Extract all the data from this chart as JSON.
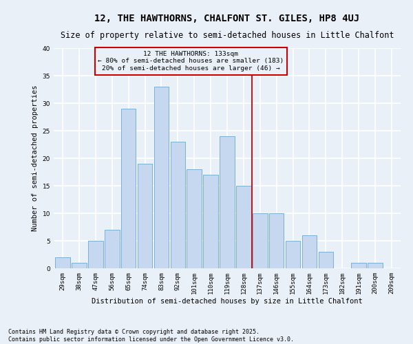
{
  "title1": "12, THE HAWTHORNS, CHALFONT ST. GILES, HP8 4UJ",
  "title2": "Size of property relative to semi-detached houses in Little Chalfont",
  "xlabel": "Distribution of semi-detached houses by size in Little Chalfont",
  "ylabel": "Number of semi-detached properties",
  "categories": [
    "29sqm",
    "38sqm",
    "47sqm",
    "56sqm",
    "65sqm",
    "74sqm",
    "83sqm",
    "92sqm",
    "101sqm",
    "110sqm",
    "119sqm",
    "128sqm",
    "137sqm",
    "146sqm",
    "155sqm",
    "164sqm",
    "173sqm",
    "182sqm",
    "191sqm",
    "200sqm",
    "209sqm"
  ],
  "values": [
    2,
    1,
    5,
    7,
    29,
    19,
    33,
    23,
    18,
    17,
    24,
    15,
    10,
    10,
    5,
    6,
    3,
    0,
    1,
    1,
    0
  ],
  "bar_color": "#c5d8f0",
  "bar_edge_color": "#7bafd4",
  "highlight_line_color": "#cc0000",
  "annotation_title": "12 THE HAWTHORNS: 133sqm",
  "annotation_line1": "← 80% of semi-detached houses are smaller (183)",
  "annotation_line2": "20% of semi-detached houses are larger (46) →",
  "annotation_box_color": "#cc0000",
  "ylim": [
    0,
    40
  ],
  "yticks": [
    0,
    5,
    10,
    15,
    20,
    25,
    30,
    35,
    40
  ],
  "footer1": "Contains HM Land Registry data © Crown copyright and database right 2025.",
  "footer2": "Contains public sector information licensed under the Open Government Licence v3.0.",
  "bg_color": "#eaf0f8",
  "grid_color": "#ffffff",
  "title1_fontsize": 10,
  "title2_fontsize": 8.5,
  "axis_label_fontsize": 7.5,
  "tick_fontsize": 6.5,
  "annotation_fontsize": 6.8,
  "footer_fontsize": 6.0
}
